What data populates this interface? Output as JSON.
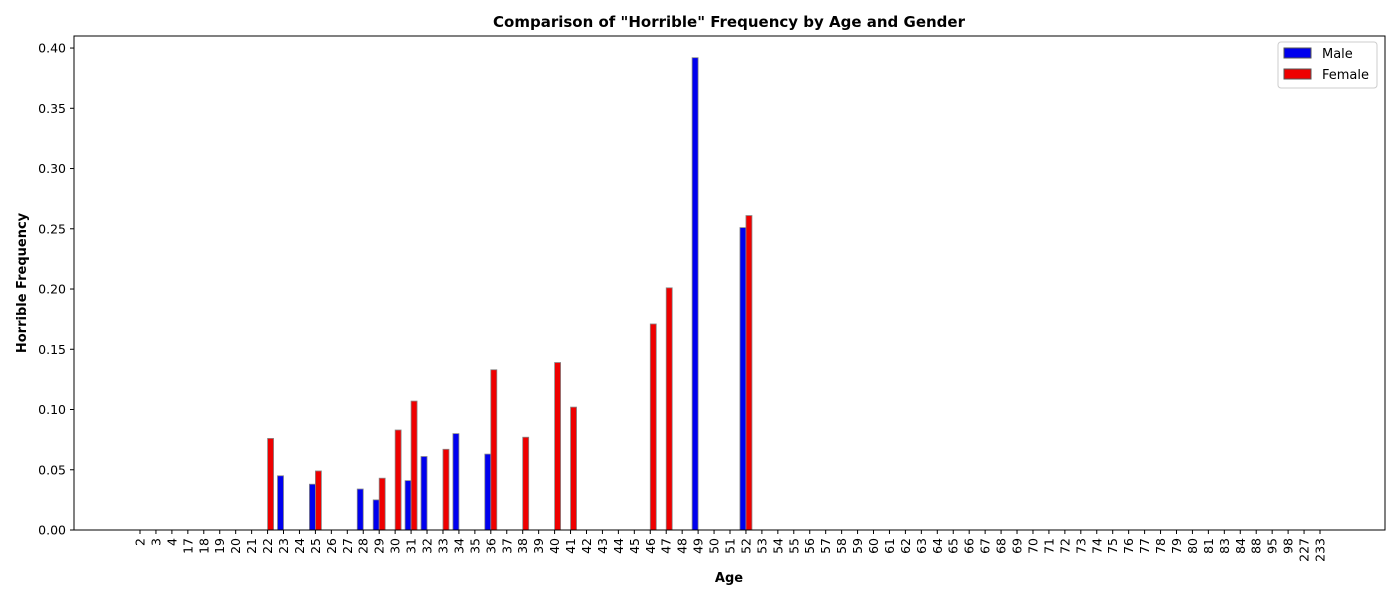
{
  "chart_data": {
    "type": "bar",
    "title": "Comparison of \"Horrible\" Frequency by Age and Gender",
    "xlabel": "Age",
    "ylabel": "Horrible Frequency",
    "ylim": [
      0,
      0.41
    ],
    "yticks": [
      "0.00",
      "0.05",
      "0.10",
      "0.15",
      "0.20",
      "0.25",
      "0.30",
      "0.35",
      "0.40"
    ],
    "legend_position": "top-right",
    "grid": false,
    "categories": [
      "2",
      "3",
      "4",
      "17",
      "18",
      "19",
      "20",
      "21",
      "22",
      "23",
      "24",
      "25",
      "26",
      "27",
      "28",
      "29",
      "30",
      "31",
      "32",
      "33",
      "34",
      "35",
      "36",
      "37",
      "38",
      "39",
      "40",
      "41",
      "42",
      "43",
      "44",
      "45",
      "46",
      "47",
      "48",
      "49",
      "50",
      "51",
      "52",
      "53",
      "54",
      "55",
      "56",
      "57",
      "58",
      "59",
      "60",
      "61",
      "62",
      "63",
      "64",
      "65",
      "66",
      "67",
      "68",
      "69",
      "70",
      "71",
      "72",
      "73",
      "74",
      "75",
      "76",
      "77",
      "78",
      "79",
      "80",
      "81",
      "83",
      "84",
      "88",
      "95",
      "98",
      "227",
      "233"
    ],
    "series": [
      {
        "name": "Male",
        "color": "#0000ee",
        "values": [
          0,
          0,
          0,
          0,
          0,
          0,
          0,
          0,
          0,
          0.045,
          0,
          0.038,
          0,
          0,
          0.034,
          0.025,
          0,
          0.041,
          0.061,
          0,
          0.08,
          0,
          0.063,
          0,
          0,
          0,
          0,
          0,
          0,
          0,
          0,
          0,
          0,
          0,
          0,
          0.392,
          0,
          0,
          0.251,
          0,
          0,
          0,
          0,
          0,
          0,
          0,
          0,
          0,
          0,
          0,
          0,
          0,
          0,
          0,
          0,
          0,
          0,
          0,
          0,
          0,
          0,
          0,
          0,
          0,
          0,
          0,
          0,
          0,
          0,
          0,
          0,
          0,
          0,
          0,
          0
        ]
      },
      {
        "name": "Female",
        "color": "#ee0000",
        "values": [
          0,
          0,
          0,
          0,
          0,
          0,
          0,
          0,
          0.076,
          0,
          0,
          0.049,
          0,
          0,
          0,
          0.043,
          0.083,
          0.107,
          0,
          0.067,
          0,
          0,
          0.133,
          0,
          0.077,
          0,
          0.139,
          0.102,
          0,
          0,
          0,
          0,
          0.171,
          0.201,
          0,
          0,
          0,
          0,
          0.261,
          0,
          0,
          0,
          0,
          0,
          0,
          0,
          0,
          0,
          0,
          0,
          0,
          0,
          0,
          0,
          0,
          0,
          0,
          0,
          0,
          0,
          0,
          0,
          0,
          0,
          0,
          0,
          0,
          0,
          0,
          0,
          0,
          0,
          0,
          0,
          0
        ]
      }
    ]
  }
}
